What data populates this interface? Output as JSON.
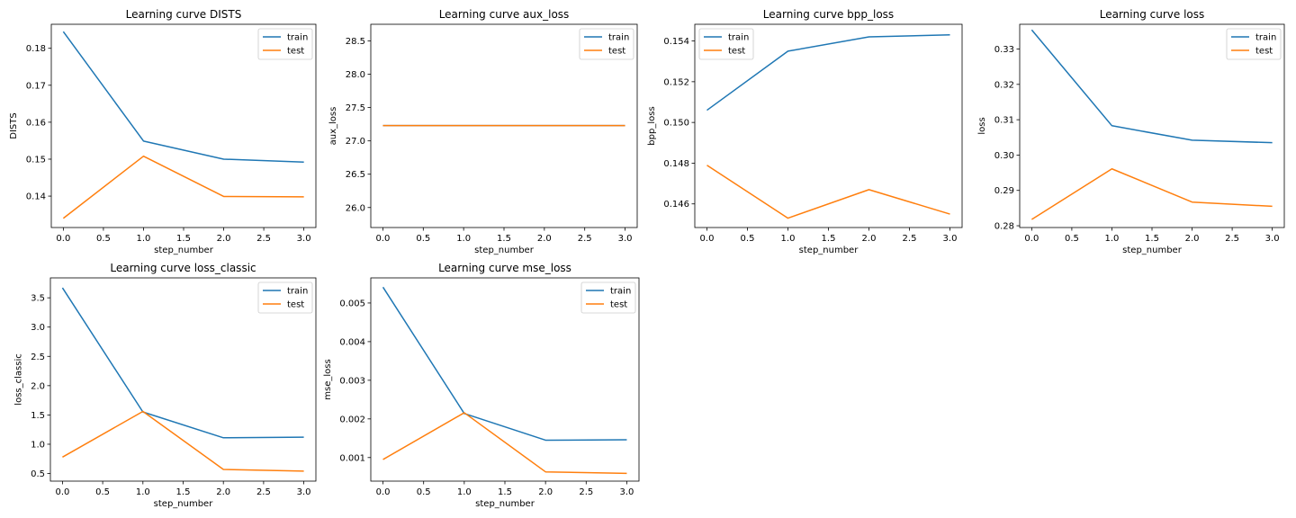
{
  "legend_labels": {
    "train": "train",
    "test": "test"
  },
  "colors": {
    "train": "#1f77b4",
    "test": "#ff7f0e"
  },
  "chart_data": [
    {
      "type": "line",
      "title": "Learning curve DISTS",
      "xlabel": "step_number",
      "ylabel": "DISTS",
      "xlim": [
        -0.15,
        3.15
      ],
      "ylim": [
        0.1315,
        0.1865
      ],
      "xticks": [
        "0.0",
        "0.5",
        "1.0",
        "1.5",
        "2.0",
        "2.5",
        "3.0"
      ],
      "yticks": [
        "0.14",
        "0.15",
        "0.16",
        "0.17",
        "0.18"
      ],
      "legend": "top-right",
      "x": [
        0,
        1,
        2,
        3
      ],
      "series": [
        {
          "name": "train",
          "values": [
            0.1845,
            0.1549,
            0.15,
            0.1492
          ]
        },
        {
          "name": "test",
          "values": [
            0.134,
            0.1508,
            0.1399,
            0.1398
          ]
        }
      ]
    },
    {
      "type": "line",
      "title": "Learning curve aux_loss",
      "xlabel": "step_number",
      "ylabel": "aux_loss",
      "xlim": [
        -0.15,
        3.15
      ],
      "ylim": [
        25.7,
        28.75
      ],
      "xticks": [
        "0.0",
        "0.5",
        "1.0",
        "1.5",
        "2.0",
        "2.5",
        "3.0"
      ],
      "yticks": [
        "26.0",
        "26.5",
        "27.0",
        "27.5",
        "28.0",
        "28.5"
      ],
      "legend": "top-right",
      "x": [
        0,
        1,
        2,
        3
      ],
      "series": [
        {
          "name": "train",
          "values": [
            27.23,
            27.23,
            27.23,
            27.23
          ]
        },
        {
          "name": "test",
          "values": [
            27.23,
            27.23,
            27.23,
            27.23
          ]
        }
      ]
    },
    {
      "type": "line",
      "title": "Learning curve bpp_loss",
      "xlabel": "step_number",
      "ylabel": "bpp_loss",
      "xlim": [
        -0.15,
        3.15
      ],
      "ylim": [
        0.14484,
        0.15482
      ],
      "xticks": [
        "0.0",
        "0.5",
        "1.0",
        "1.5",
        "2.0",
        "2.5",
        "3.0"
      ],
      "yticks": [
        "0.146",
        "0.148",
        "0.150",
        "0.152",
        "0.154"
      ],
      "legend": "top-left",
      "x": [
        0,
        1,
        2,
        3
      ],
      "series": [
        {
          "name": "train",
          "values": [
            0.1506,
            0.1535,
            0.1542,
            0.1543
          ]
        },
        {
          "name": "test",
          "values": [
            0.1479,
            0.1453,
            0.1467,
            0.1455
          ]
        }
      ]
    },
    {
      "type": "line",
      "title": "Learning curve loss",
      "xlabel": "step_number",
      "ylabel": "loss",
      "xlim": [
        -0.15,
        3.15
      ],
      "ylim": [
        0.2795,
        0.337
      ],
      "xticks": [
        "0.0",
        "0.5",
        "1.0",
        "1.5",
        "2.0",
        "2.5",
        "3.0"
      ],
      "yticks": [
        "0.28",
        "0.29",
        "0.30",
        "0.31",
        "0.32",
        "0.33"
      ],
      "legend": "top-right",
      "x": [
        0,
        1,
        2,
        3
      ],
      "series": [
        {
          "name": "train",
          "values": [
            0.3354,
            0.3083,
            0.3042,
            0.3035
          ]
        },
        {
          "name": "test",
          "values": [
            0.2818,
            0.2961,
            0.2867,
            0.2855
          ]
        }
      ]
    },
    {
      "type": "line",
      "title": "Learning curve loss_classic",
      "xlabel": "step_number",
      "ylabel": "loss_classic",
      "xlim": [
        -0.15,
        3.15
      ],
      "ylim": [
        0.37,
        3.84
      ],
      "xticks": [
        "0.0",
        "0.5",
        "1.0",
        "1.5",
        "2.0",
        "2.5",
        "3.0"
      ],
      "yticks": [
        "0.5",
        "1.0",
        "1.5",
        "2.0",
        "2.5",
        "3.0",
        "3.5"
      ],
      "legend": "top-right",
      "x": [
        0,
        1,
        2,
        3
      ],
      "series": [
        {
          "name": "train",
          "values": [
            3.67,
            1.55,
            1.11,
            1.12
          ]
        },
        {
          "name": "test",
          "values": [
            0.78,
            1.56,
            0.57,
            0.54
          ]
        }
      ]
    },
    {
      "type": "line",
      "title": "Learning curve mse_loss",
      "xlabel": "step_number",
      "ylabel": "mse_loss",
      "xlim": [
        -0.15,
        3.15
      ],
      "ylim": [
        0.00039,
        0.00565
      ],
      "xticks": [
        "0.0",
        "0.5",
        "1.0",
        "1.5",
        "2.0",
        "2.5",
        "3.0"
      ],
      "yticks": [
        "0.001",
        "0.002",
        "0.003",
        "0.004",
        "0.005"
      ],
      "legend": "top-right",
      "x": [
        0,
        1,
        2,
        3
      ],
      "series": [
        {
          "name": "train",
          "values": [
            0.00541,
            0.00214,
            0.00145,
            0.00146
          ]
        },
        {
          "name": "test",
          "values": [
            0.00095,
            0.00216,
            0.00063,
            0.00059
          ]
        }
      ]
    }
  ]
}
